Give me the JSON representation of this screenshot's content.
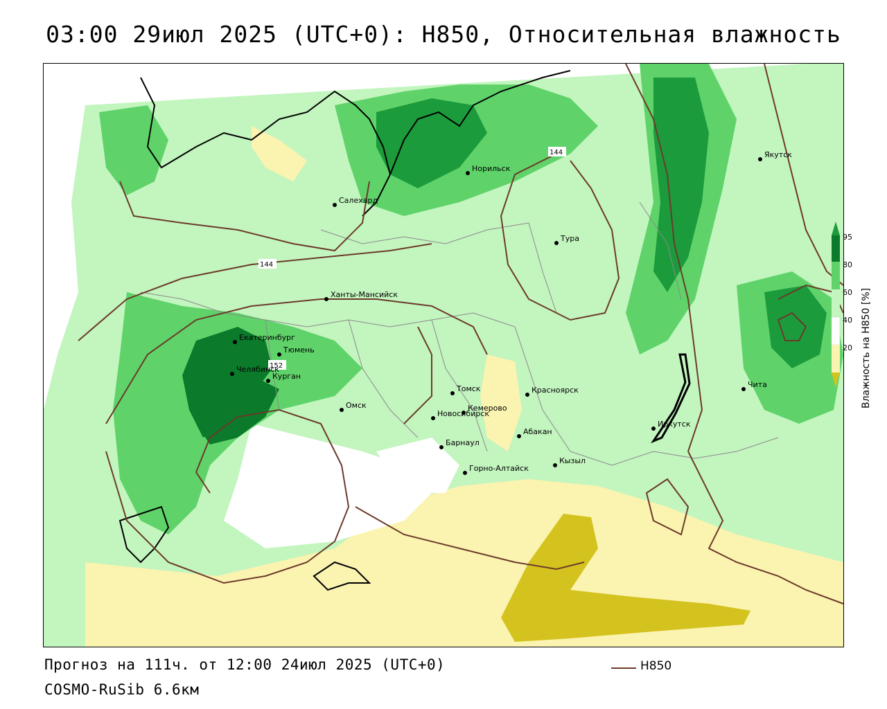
{
  "title": "03:00 29июл 2025 (UTC+0): H850, Относительная влажность",
  "footer": {
    "forecast": "Прогноз на 111ч. от 12:00 24июл 2025 (UTC+0)",
    "model": "COSMO-RuSib 6.6км"
  },
  "line_legend": {
    "label": "H850",
    "color": "#6b3a2a"
  },
  "colorbar": {
    "title": "Влажность на H850 [%]",
    "ticks": [
      "95",
      "80",
      "60",
      "40",
      "20"
    ],
    "colors": {
      "very_dry": "#d4c21e",
      "dry": "#fbf3b0",
      "neutral": "#ffffff",
      "moist": "#c3f5bf",
      "wet": "#5fd36a",
      "very_wet": "#1c9b3c",
      "saturated": "#0b7a2b"
    }
  },
  "cities": [
    {
      "name": "Якутск"
    },
    {
      "name": "Норильск"
    },
    {
      "name": "Салехард"
    },
    {
      "name": "Тура"
    },
    {
      "name": "Ханты-Мансийск"
    },
    {
      "name": "Екатеринбург"
    },
    {
      "name": "Тюмень"
    },
    {
      "name": "Челябинск"
    },
    {
      "name": "Курган"
    },
    {
      "name": "Омск"
    },
    {
      "name": "Новосибирск"
    },
    {
      "name": "Томск"
    },
    {
      "name": "Кемерово"
    },
    {
      "name": "Красноярск"
    },
    {
      "name": "Барнаул"
    },
    {
      "name": "Абакан"
    },
    {
      "name": "Горно-Алтайск"
    },
    {
      "name": "Кызыл"
    },
    {
      "name": "Иркутск"
    },
    {
      "name": "Чита"
    }
  ],
  "contour_labels": [
    "144",
    "144",
    "152"
  ]
}
